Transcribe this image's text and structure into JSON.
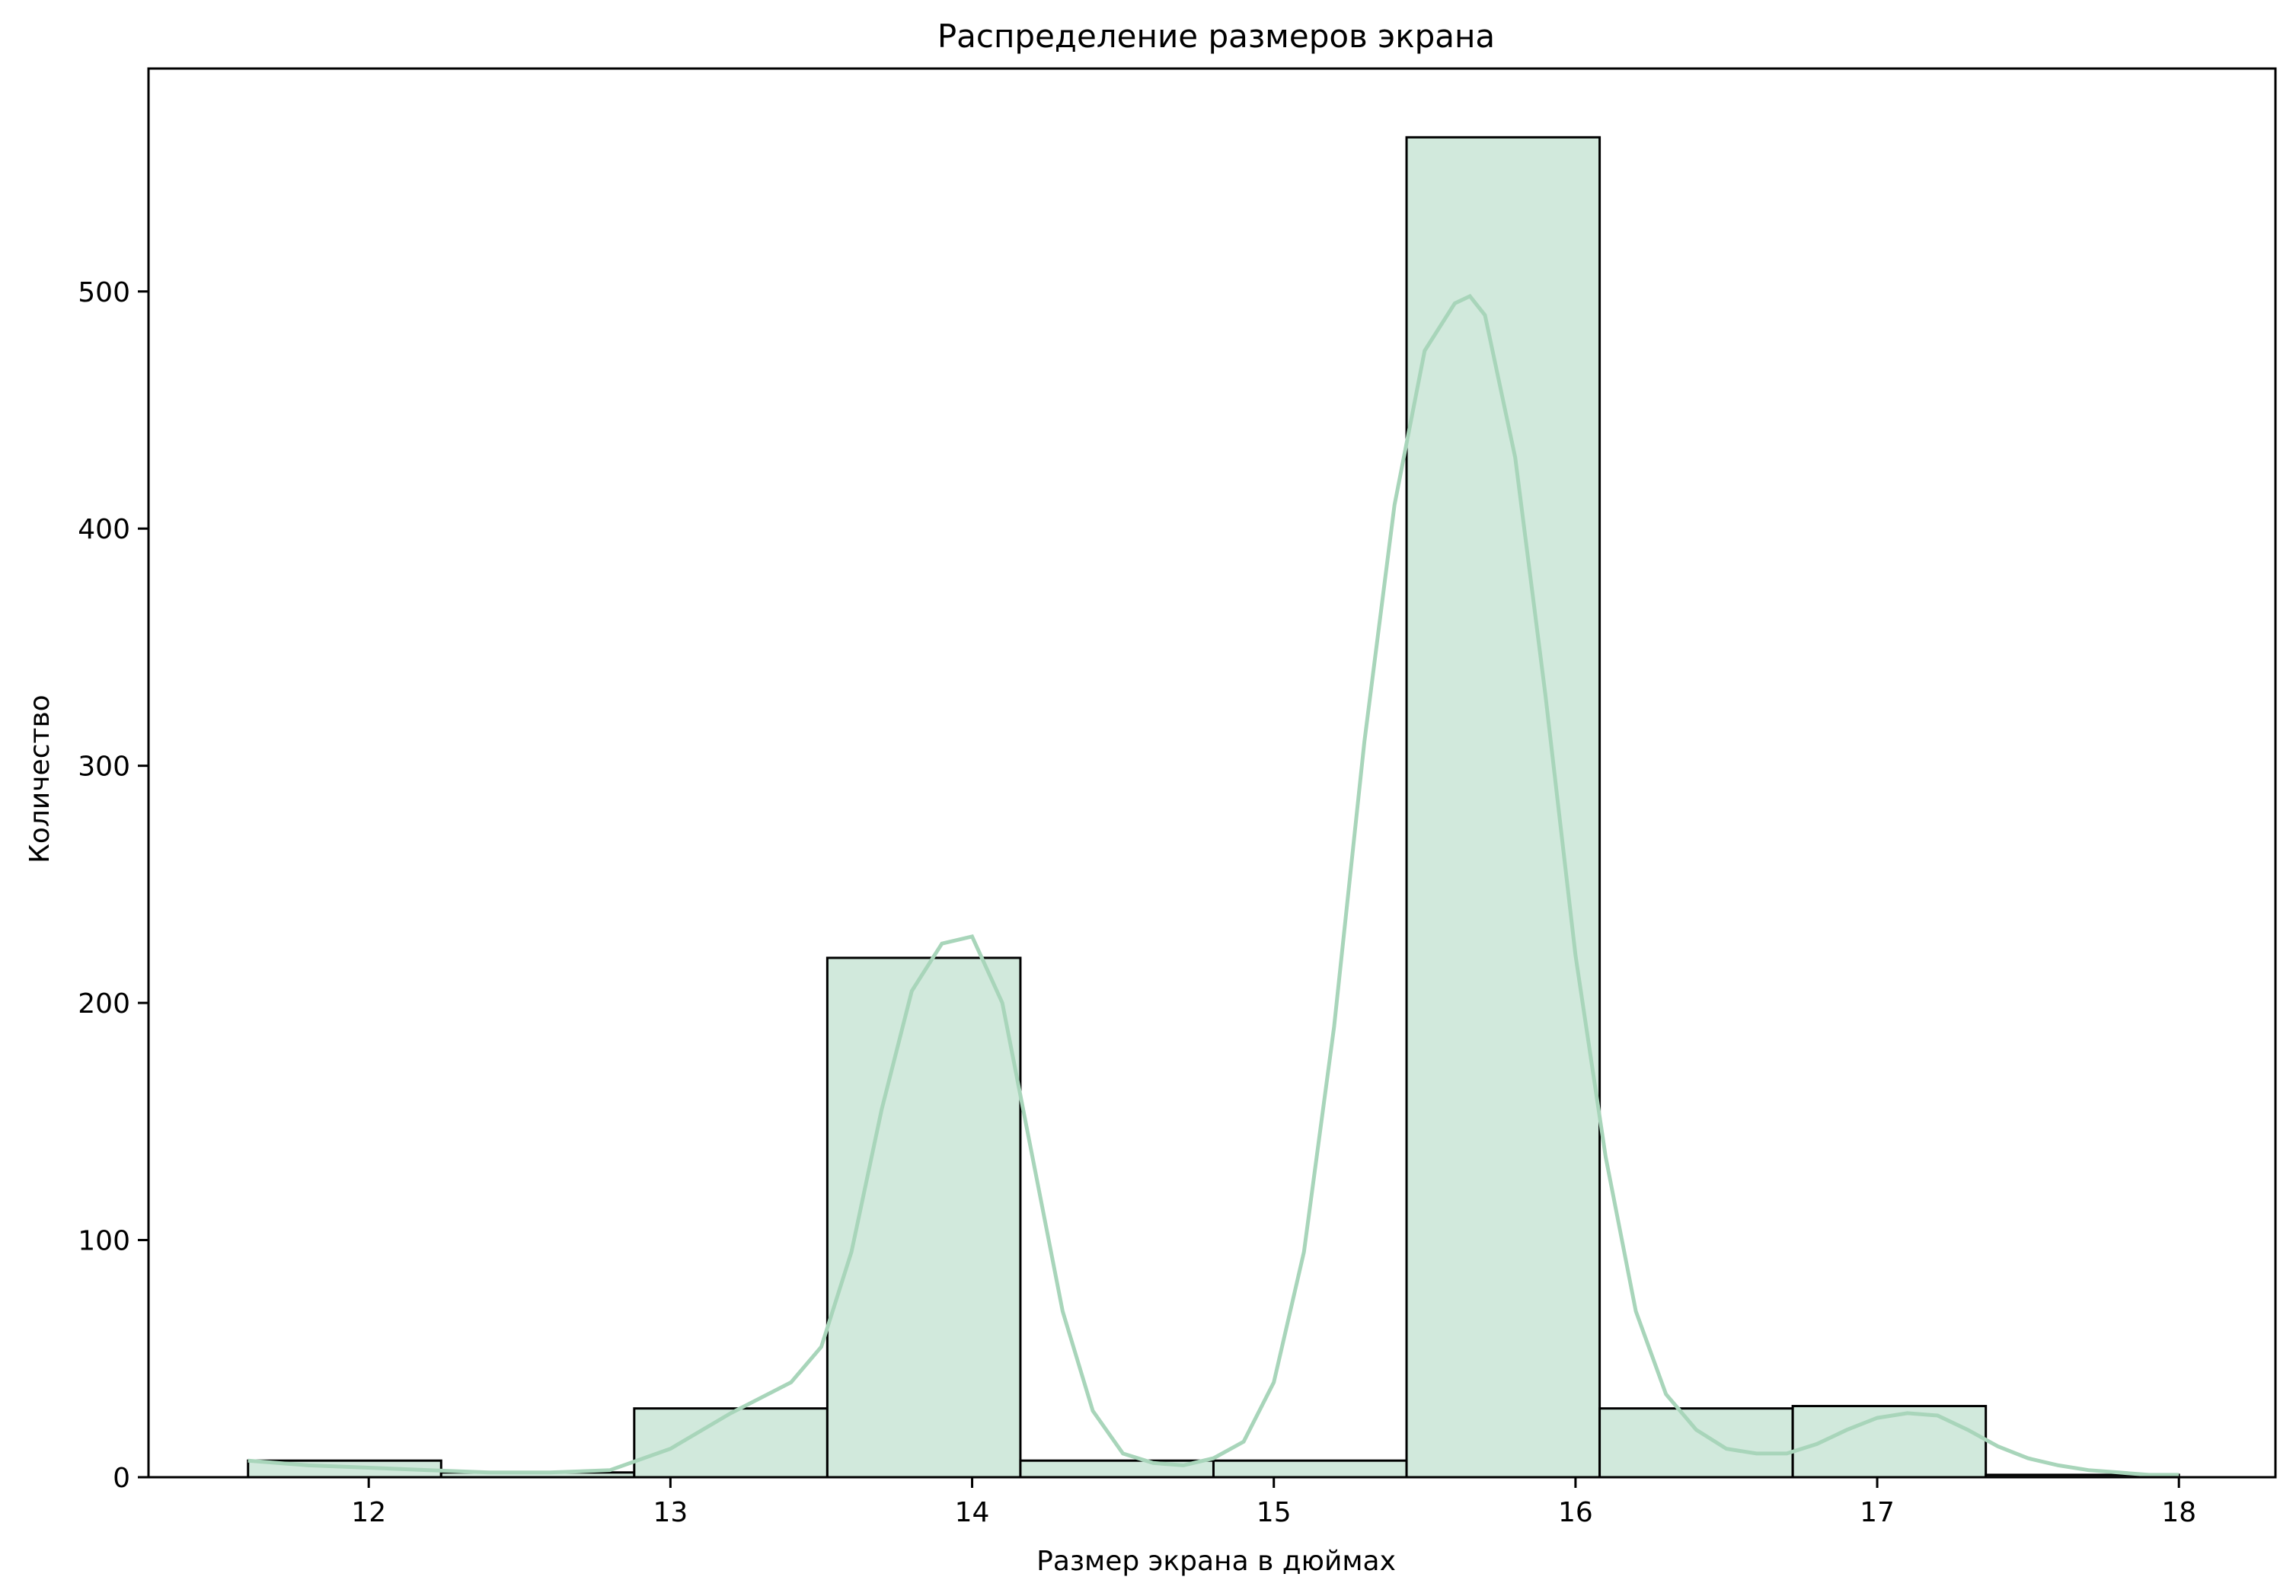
{
  "chart_data": {
    "type": "bar",
    "subtype": "histogram",
    "title": "Распределение размеров экрана",
    "xlabel": "Размер экрана в дюймах",
    "ylabel": "Количество",
    "xlim": [
      11.27,
      18.32
    ],
    "ylim": [
      0,
      594
    ],
    "xticks": [
      12,
      13,
      14,
      15,
      16,
      17,
      18
    ],
    "yticks": [
      0,
      100,
      200,
      300,
      400,
      500
    ],
    "grid": false,
    "legend": false,
    "bar_color": "#d1e9dc",
    "edge_color": "#000000",
    "kde_color": "#a8d5ba",
    "bins": [
      {
        "start": 11.6,
        "end": 12.24,
        "value": 7
      },
      {
        "start": 12.24,
        "end": 12.88,
        "value": 2
      },
      {
        "start": 12.88,
        "end": 13.52,
        "value": 29
      },
      {
        "start": 13.52,
        "end": 14.16,
        "value": 219
      },
      {
        "start": 14.16,
        "end": 14.8,
        "value": 7
      },
      {
        "start": 14.8,
        "end": 15.44,
        "value": 7
      },
      {
        "start": 15.44,
        "end": 16.08,
        "value": 565
      },
      {
        "start": 16.08,
        "end": 16.72,
        "value": 29
      },
      {
        "start": 16.72,
        "end": 17.36,
        "value": 30
      },
      {
        "start": 17.36,
        "end": 18.0,
        "value": 1
      }
    ],
    "kde": {
      "x": [
        11.6,
        11.8,
        12.0,
        12.2,
        12.4,
        12.6,
        12.8,
        13.0,
        13.2,
        13.4,
        13.5,
        13.6,
        13.7,
        13.8,
        13.9,
        14.0,
        14.1,
        14.2,
        14.3,
        14.4,
        14.5,
        14.6,
        14.7,
        14.8,
        14.9,
        15.0,
        15.1,
        15.2,
        15.3,
        15.4,
        15.5,
        15.6,
        15.65,
        15.7,
        15.8,
        15.9,
        16.0,
        16.1,
        16.2,
        16.3,
        16.4,
        16.5,
        16.6,
        16.7,
        16.8,
        16.9,
        17.0,
        17.1,
        17.2,
        17.3,
        17.4,
        17.5,
        17.6,
        17.7,
        17.8,
        17.9,
        18.0
      ],
      "y": [
        7,
        5,
        4,
        3,
        2,
        2,
        3,
        12,
        27,
        40,
        55,
        95,
        155,
        205,
        225,
        228,
        200,
        135,
        70,
        28,
        10,
        6,
        5,
        8,
        15,
        40,
        95,
        190,
        310,
        410,
        475,
        495,
        498,
        490,
        430,
        330,
        220,
        135,
        70,
        35,
        20,
        12,
        10,
        10,
        14,
        20,
        25,
        27,
        26,
        20,
        13,
        8,
        5,
        3,
        2,
        1,
        1
      ]
    }
  }
}
